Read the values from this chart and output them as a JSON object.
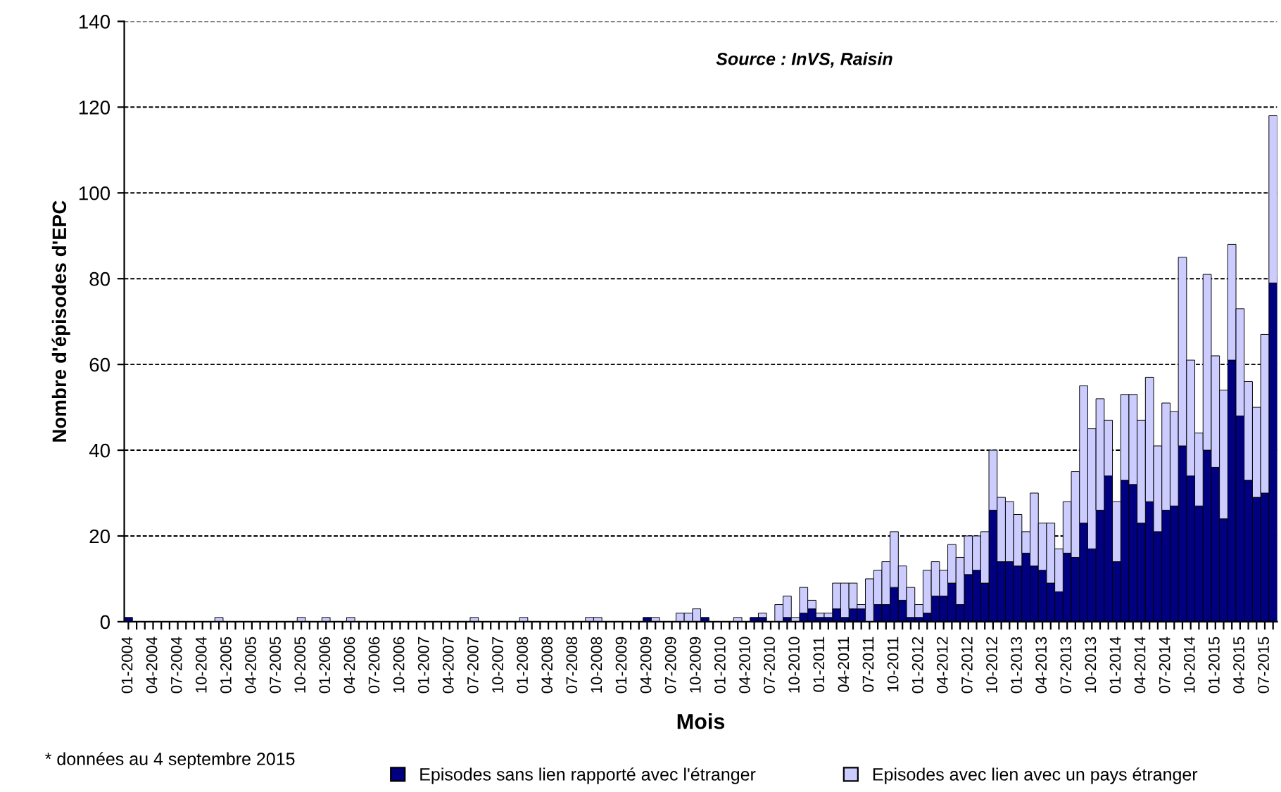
{
  "chart_data": {
    "type": "bar",
    "stacked": true,
    "xlabel": "Mois",
    "ylabel": "Nombre d'épisodes d'EPC",
    "annotations": [
      "Source : InVS, Raisin",
      "* données au 4 septembre 2015"
    ],
    "categories": [
      "01-2004",
      null,
      null,
      "04-2004",
      null,
      null,
      "07-2004",
      null,
      null,
      "10-2004",
      null,
      null,
      "01-2005",
      null,
      null,
      "04-2005",
      null,
      null,
      "07-2005",
      null,
      null,
      "10-2005",
      null,
      null,
      "01-2006",
      null,
      null,
      "04-2006",
      null,
      null,
      "07-2006",
      null,
      null,
      "10-2006",
      null,
      null,
      "01-2007",
      null,
      null,
      "04-2007",
      null,
      null,
      "07-2007",
      null,
      null,
      "10-2007",
      null,
      null,
      "01-2008",
      null,
      null,
      "04-2008",
      null,
      null,
      "07-2008",
      null,
      null,
      "10-2008",
      null,
      null,
      "01-2009",
      null,
      null,
      "04-2009",
      null,
      null,
      "07-2009",
      null,
      null,
      "10-2009",
      null,
      null,
      "01-2010",
      null,
      null,
      "04-2010",
      null,
      null,
      "07-2010",
      null,
      null,
      "10-2010",
      null,
      null,
      "01-2011",
      null,
      null,
      "04-2011",
      null,
      null,
      "07-2011",
      null,
      null,
      "10-2011",
      null,
      null,
      "01-2012",
      null,
      null,
      "04-2012",
      null,
      null,
      "07-2012",
      null,
      null,
      "10-2012",
      null,
      null,
      "01-2013",
      null,
      null,
      "04-2013",
      null,
      null,
      "07-2013",
      null,
      null,
      "10-2013",
      null,
      null,
      "01-2014",
      null,
      null,
      "04-2014",
      null,
      null,
      "07-2014",
      null,
      null,
      "10-2014",
      null,
      null,
      "01-2015",
      null,
      null,
      "04-2015",
      null,
      null,
      "07-2015",
      null
    ],
    "series": [
      {
        "name": "Episodes sans lien rapporté avec l'étranger",
        "color": "#000080",
        "values": [
          1,
          0,
          0,
          0,
          0,
          0,
          0,
          0,
          0,
          0,
          0,
          0,
          0,
          0,
          0,
          0,
          0,
          0,
          0,
          0,
          0,
          0,
          0,
          0,
          0,
          0,
          0,
          0,
          0,
          0,
          0,
          0,
          0,
          0,
          0,
          0,
          0,
          0,
          0,
          0,
          0,
          0,
          0,
          0,
          0,
          0,
          0,
          0,
          0,
          0,
          0,
          0,
          0,
          0,
          0,
          0,
          0,
          0,
          0,
          0,
          0,
          0,
          0,
          1,
          0,
          0,
          0,
          0,
          0,
          0,
          1,
          0,
          0,
          0,
          0,
          0,
          1,
          1,
          0,
          0,
          1,
          0,
          2,
          3,
          1,
          1,
          3,
          1,
          3,
          3,
          0,
          4,
          4,
          8,
          5,
          1,
          1,
          2,
          6,
          6,
          9,
          4,
          11,
          12,
          9,
          26,
          14,
          14,
          13,
          16,
          13,
          12,
          9,
          7,
          16,
          15,
          23,
          17,
          26,
          34,
          14,
          33,
          32,
          23,
          28,
          21,
          26,
          27,
          41,
          34,
          27,
          40,
          36,
          24,
          61,
          48,
          33,
          29,
          30,
          79
        ]
      },
      {
        "name": "Episodes avec lien avec un pays étranger",
        "color": "#ccccff",
        "values": [
          0,
          0,
          0,
          0,
          0,
          0,
          0,
          0,
          0,
          0,
          0,
          1,
          0,
          0,
          0,
          0,
          0,
          0,
          0,
          0,
          0,
          1,
          0,
          0,
          1,
          0,
          0,
          1,
          0,
          0,
          0,
          0,
          0,
          0,
          0,
          0,
          0,
          0,
          0,
          0,
          0,
          0,
          1,
          0,
          0,
          0,
          0,
          0,
          1,
          0,
          0,
          0,
          0,
          0,
          0,
          0,
          1,
          1,
          0,
          0,
          0,
          0,
          0,
          0,
          1,
          0,
          0,
          2,
          2,
          3,
          0,
          0,
          0,
          0,
          1,
          0,
          0,
          1,
          0,
          4,
          5,
          1,
          6,
          2,
          1,
          1,
          6,
          8,
          6,
          1,
          10,
          8,
          10,
          13,
          8,
          7,
          3,
          10,
          8,
          6,
          9,
          11,
          9,
          8,
          12,
          14,
          15,
          14,
          12,
          5,
          17,
          11,
          14,
          10,
          12,
          20,
          32,
          28,
          26,
          13,
          14,
          20,
          21,
          24,
          29,
          20,
          25,
          22,
          44,
          27,
          17,
          41,
          26,
          30,
          27,
          25,
          23,
          21,
          37,
          39
        ]
      }
    ],
    "ylim": [
      0,
      140
    ],
    "yticks": [
      0,
      20,
      40,
      60,
      80,
      100,
      120,
      140
    ],
    "grid": "y",
    "legend": "bottom"
  }
}
